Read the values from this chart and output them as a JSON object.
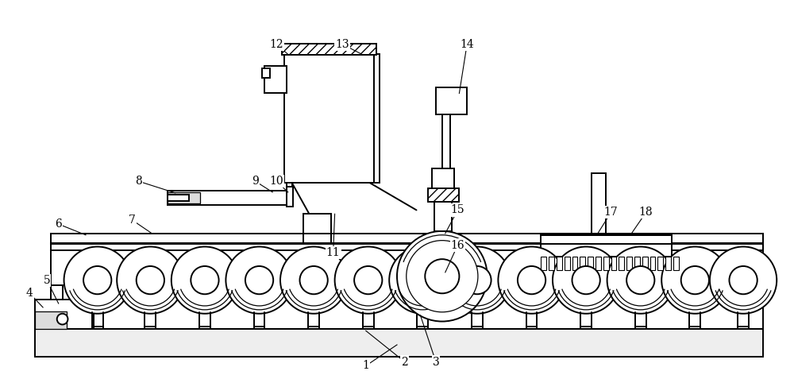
{
  "bg_color": "#ffffff",
  "line_color": "#000000",
  "fig_width": 10.0,
  "fig_height": 4.72,
  "dpi": 100
}
